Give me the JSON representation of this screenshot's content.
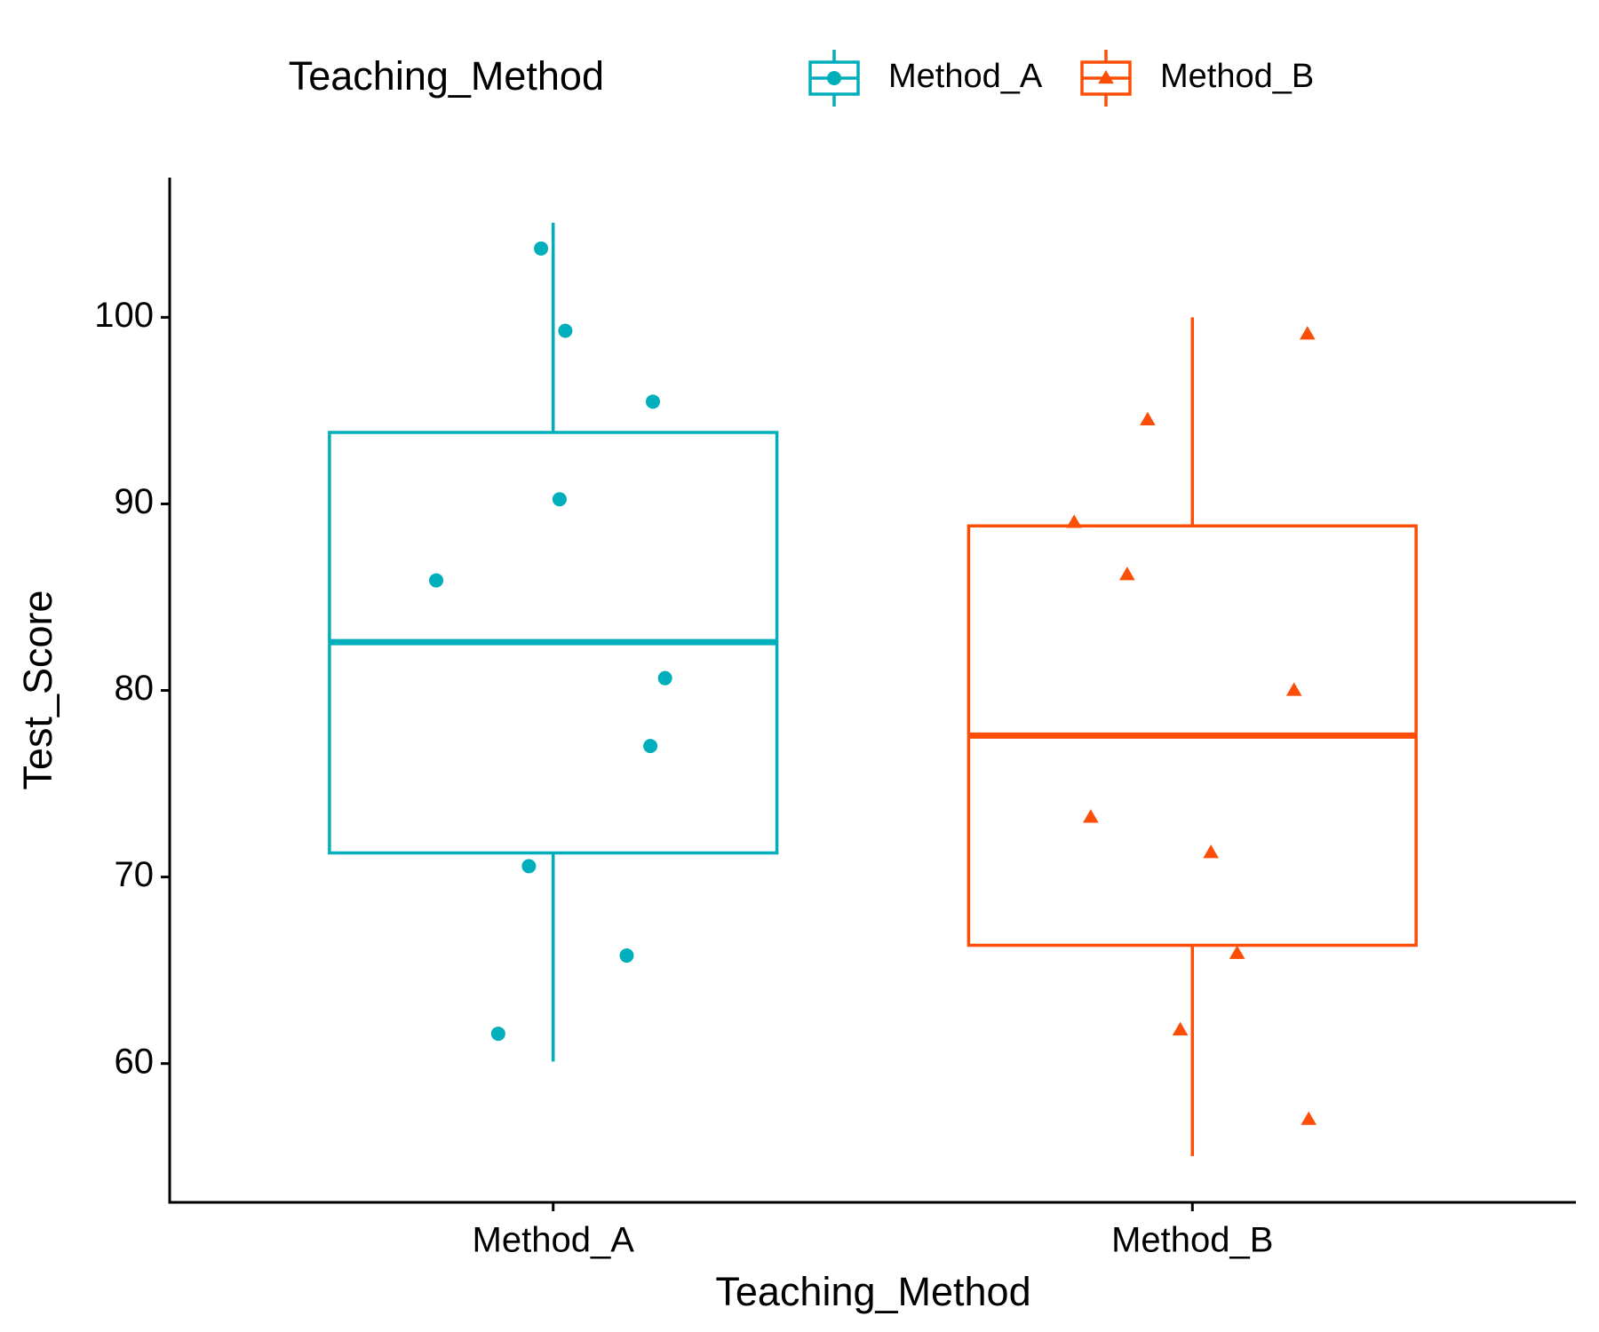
{
  "chart_data": {
    "type": "boxplot",
    "legend_title": "Teaching_Method",
    "x_label": "Teaching_Method",
    "y_label": "Test_Score",
    "categories": [
      "Method_A",
      "Method_B"
    ],
    "series": [
      {
        "name": "Method_A",
        "color": "#00AFBB",
        "marker": "circle",
        "box": {
          "whisker_low": 60.11,
          "q1": 71.29,
          "median": 82.59,
          "q3": 93.83,
          "whisker_high": 105.07
        },
        "values": [
          103.69,
          99.28,
          95.48,
          90.25,
          85.9,
          80.66,
          77.02,
          70.58,
          65.79,
          61.6
        ],
        "jitter": [
          -0.019,
          0.019,
          0.156,
          0.01,
          -0.183,
          0.175,
          0.152,
          -0.038,
          0.115,
          -0.086
        ]
      },
      {
        "name": "Method_B",
        "color": "#FC4E07",
        "marker": "triangle",
        "box": {
          "whisker_low": 55.04,
          "q1": 66.34,
          "median": 77.58,
          "q3": 88.82,
          "whisker_high": 100
        },
        "values": [
          99.1,
          94.5,
          89.0,
          86.2,
          80.0,
          73.2,
          71.3,
          65.9,
          61.8,
          57.0
        ],
        "jitter": [
          0.18,
          -0.07,
          -0.185,
          -0.102,
          0.159,
          -0.159,
          0.029,
          0.07,
          -0.019,
          0.182
        ]
      }
    ],
    "ylim": [
      52.56,
      107.49
    ],
    "yticks": [
      60,
      70,
      80,
      90,
      100
    ],
    "legend_position": "top",
    "grid": false
  }
}
